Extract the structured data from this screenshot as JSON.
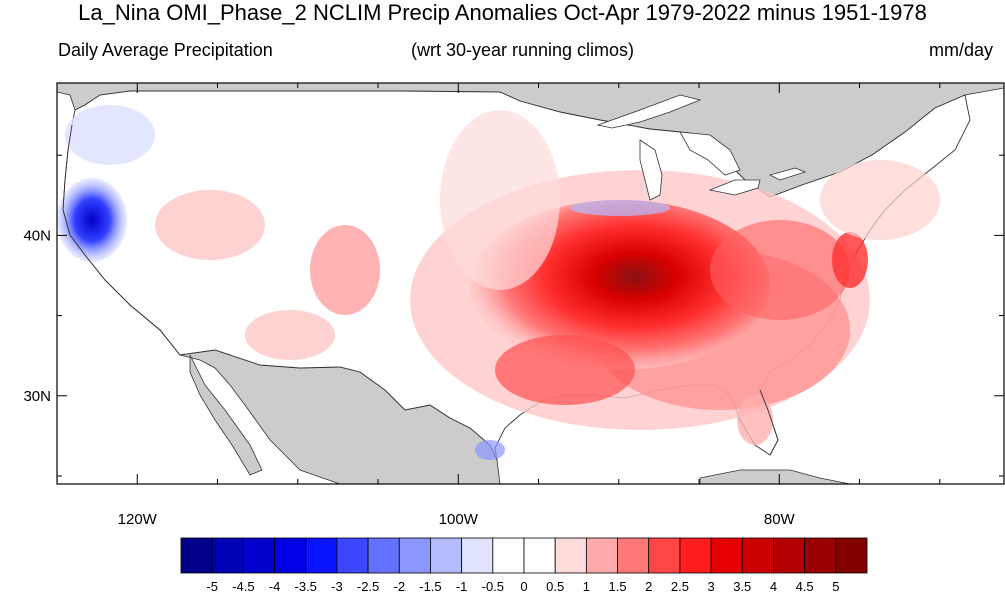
{
  "title": "La_Nina OMI_Phase_2 NCLIM Precip Anomalies Oct-Apr 1979-2022 minus 1951-1978",
  "subtitle_left": "Daily Average Precipitation",
  "subtitle_center": "(wrt 30-year running climos)",
  "subtitle_right": "mm/day",
  "map": {
    "lon_range": [
      -125,
      -66
    ],
    "lat_range": [
      24.5,
      49.5
    ],
    "lon_ticks": [
      {
        "value": -120,
        "label": "120W"
      },
      {
        "value": -100,
        "label": "100W"
      },
      {
        "value": -80,
        "label": "80W"
      }
    ],
    "lat_ticks": [
      {
        "value": 40,
        "label": "40N"
      },
      {
        "value": 30,
        "label": "30N"
      }
    ]
  },
  "colorbar": {
    "labels": [
      "-5",
      "-4.5",
      "-4",
      "-3.5",
      "-3",
      "-2.5",
      "-2",
      "-1.5",
      "-1",
      "-0.5",
      "0",
      "0.5",
      "1",
      "1.5",
      "2",
      "2.5",
      "3",
      "3.5",
      "4",
      "4.5",
      "5"
    ],
    "colors": [
      "#00008b",
      "#0000b4",
      "#0000cd",
      "#0000e6",
      "#0a14ff",
      "#3c46ff",
      "#6470ff",
      "#8c96ff",
      "#b4bcff",
      "#e0e4ff",
      "#ffffff",
      "#ffffff",
      "#ffdcdc",
      "#ffaaaa",
      "#ff7878",
      "#ff4646",
      "#ff1e1e",
      "#e60000",
      "#cd0000",
      "#b40000",
      "#9b0000",
      "#820000"
    ]
  },
  "colors": {
    "land_mask": "#cccccc",
    "frame": "#000000"
  }
}
